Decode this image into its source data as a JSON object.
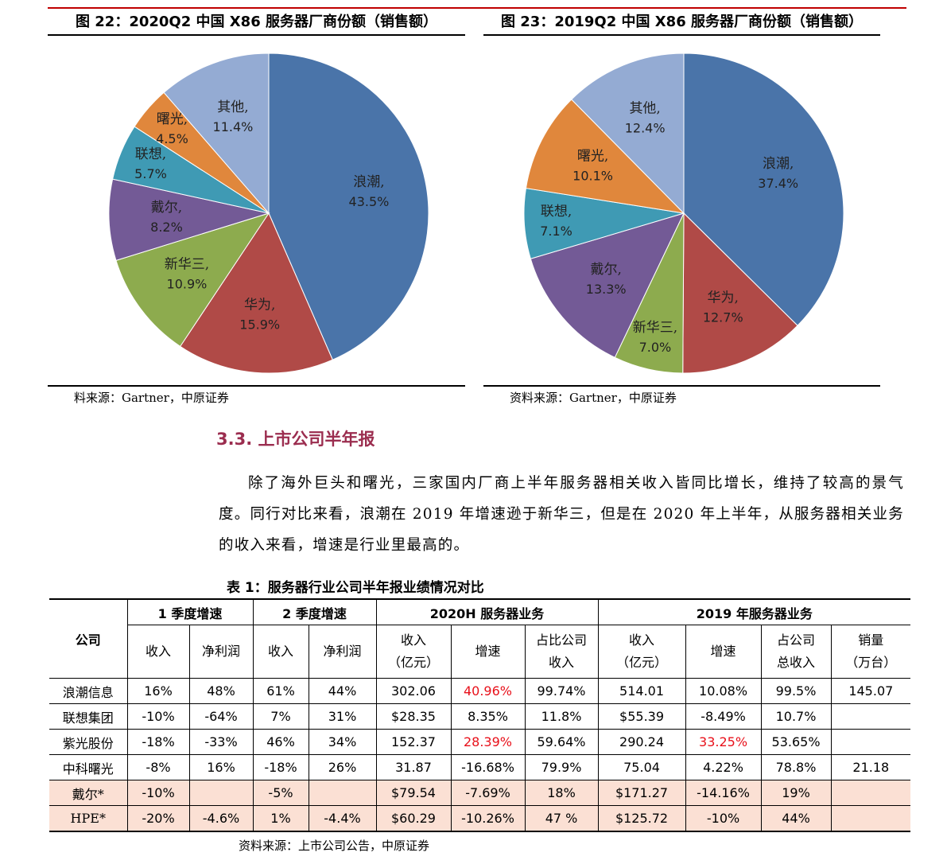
{
  "chart_data": [
    {
      "type": "pie",
      "title": "图 22：2020Q2 中国 X86 服务器厂商份额（销售额）",
      "categories": [
        "浪潮,",
        "华为,",
        "新华三,",
        "戴尔,",
        "联想,",
        "曙光,",
        "其他,"
      ],
      "values": [
        43.5,
        15.9,
        10.9,
        8.2,
        5.7,
        4.5,
        11.4
      ],
      "value_labels": [
        "43.5%",
        "15.9%",
        "10.9%",
        "8.2%",
        "5.7%",
        "4.5%",
        "11.4%"
      ],
      "colors": [
        "#4a74a9",
        "#b04a47",
        "#8dab4e",
        "#735a96",
        "#3f9ab4",
        "#e0873c",
        "#94abd3"
      ],
      "source": "料来源：Gartner，中原证券"
    },
    {
      "type": "pie",
      "title": "图 23：2019Q2 中国 X86 服务器厂商份额（销售额）",
      "categories": [
        "浪潮,",
        "华为,",
        "新华三,",
        "戴尔,",
        "联想,",
        "曙光,",
        "其他,"
      ],
      "values": [
        37.4,
        12.7,
        7.0,
        13.3,
        7.1,
        10.1,
        12.4
      ],
      "value_labels": [
        "37.4%",
        "12.7%",
        "7.0%",
        "13.3%",
        "7.1%",
        "10.1%",
        "12.4%"
      ],
      "colors": [
        "#4a74a9",
        "#b04a47",
        "#8dab4e",
        "#735a96",
        "#3f9ab4",
        "#e0873c",
        "#94abd3"
      ],
      "source": "资料来源：Gartner，中原证券"
    }
  ],
  "section": {
    "heading": "3.3. 上市公司半年报",
    "paragraph": "除了海外巨头和曙光，三家国内厂商上半年服务器相关收入皆同比增长，维持了较高的景气度。同行对比来看，浪潮在 2019 年增速逊于新华三，但是在 2020 年上半年，从服务器相关业务的收入来看，增速是行业里最高的。"
  },
  "table": {
    "caption": "表 1：服务器行业公司半年报业绩情况对比",
    "groups": [
      "公司",
      "1 季度增速",
      "2 季度增速",
      "2020H 服务器业务",
      "2019 年服务器业务"
    ],
    "columns": [
      [
        "收入"
      ],
      [
        "净利润"
      ],
      [
        "收入"
      ],
      [
        "净利润"
      ],
      [
        "收入",
        "（亿元）"
      ],
      [
        "增速"
      ],
      [
        "占比公司",
        "收入"
      ],
      [
        "收入",
        "（亿元）"
      ],
      [
        "增速"
      ],
      [
        "占公司",
        "总收入"
      ],
      [
        "销量",
        "（万台）"
      ]
    ],
    "rows": [
      [
        "浪潮信息",
        "16%",
        "48%",
        "61%",
        "44%",
        "302.06",
        "40.96%",
        "99.74%",
        "514.01",
        "10.08%",
        "99.5%",
        "145.07"
      ],
      [
        "联想集团",
        "-10%",
        "-64%",
        "7%",
        "31%",
        "$28.35",
        "8.35%",
        "11.8%",
        "$55.39",
        "-8.49%",
        "10.7%",
        null
      ],
      [
        "紫光股份",
        "-18%",
        "-33%",
        "46%",
        "34%",
        "152.37",
        "28.39%",
        "59.64%",
        "290.24",
        "33.25%",
        "53.65%",
        null
      ],
      [
        "中科曙光",
        "-8%",
        "16%",
        "-18%",
        "26%",
        "31.87",
        "-16.68%",
        "79.9%",
        "75.04",
        "4.22%",
        "78.8%",
        "21.18"
      ],
      [
        "戴尔*",
        "-10%",
        null,
        "-5%",
        null,
        "$79.54",
        "-7.69%",
        "18%",
        "$171.27",
        "-14.16%",
        "19%",
        null
      ],
      [
        "HPE*",
        "-20%",
        "-4.6%",
        "1%",
        "-4.4%",
        "$60.29",
        "-10.26%",
        "47 %",
        "$125.72",
        "-10%",
        "44%",
        null
      ]
    ],
    "highlight_color": "#e8101a",
    "highlighted": [
      [
        0,
        6
      ],
      [
        2,
        6
      ],
      [
        2,
        9
      ]
    ],
    "source": "资料来源：上市公司公告，中原证券"
  }
}
